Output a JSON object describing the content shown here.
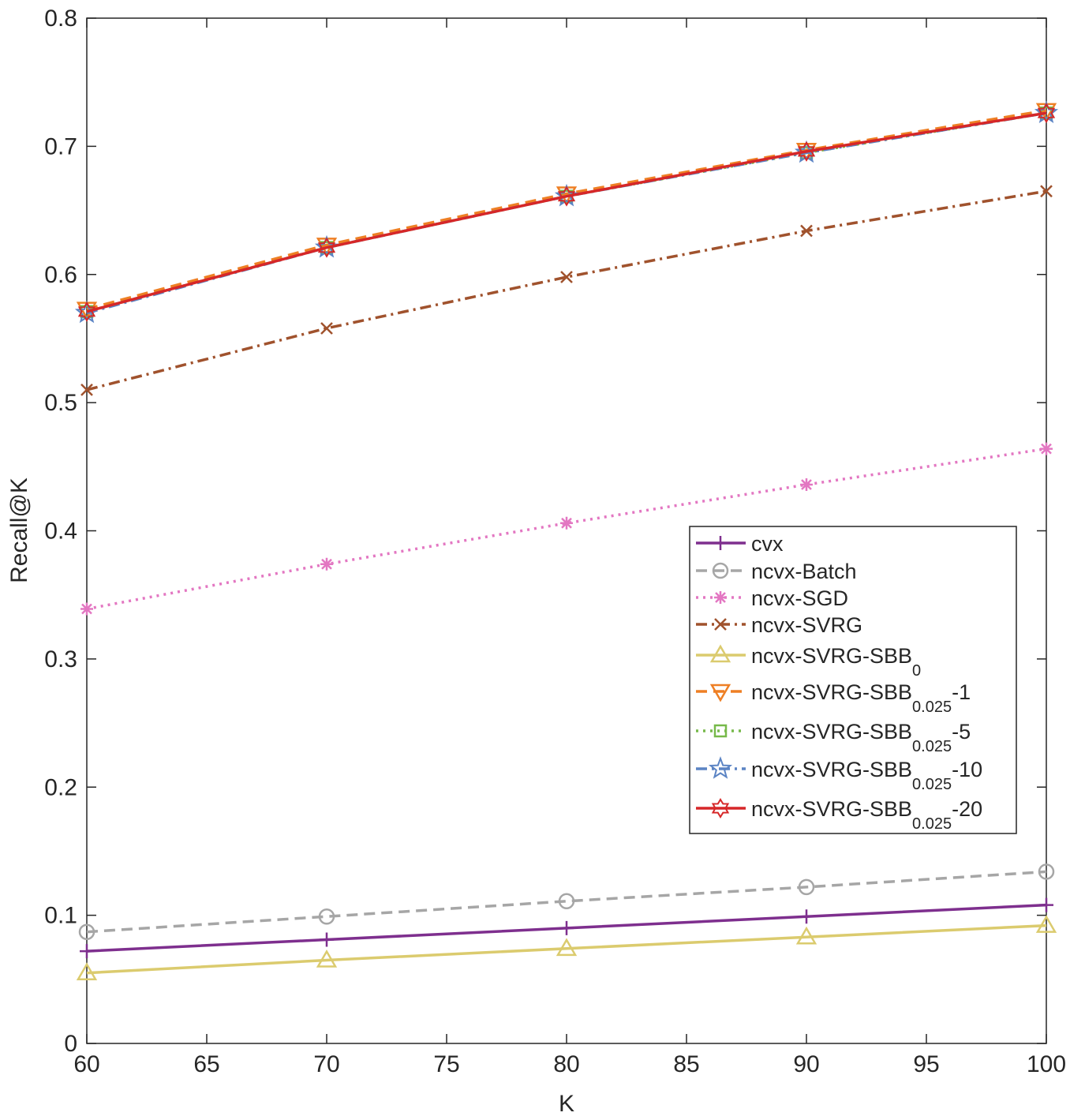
{
  "chart_data": {
    "type": "line",
    "title": "",
    "xlabel": "K",
    "ylabel": "Recall@K",
    "xlim": [
      60,
      100
    ],
    "ylim": [
      0,
      0.8
    ],
    "xticks": [
      60,
      65,
      70,
      75,
      80,
      85,
      90,
      95,
      100
    ],
    "yticks": [
      0,
      0.1,
      0.2,
      0.3,
      0.4,
      0.5,
      0.6,
      0.7,
      0.8
    ],
    "ytick_labels": [
      "0",
      "0.1",
      "0.2",
      "0.3",
      "0.4",
      "0.5",
      "0.6",
      "0.7",
      "0.8"
    ],
    "grid": false,
    "legend_position": "center-right",
    "x": [
      60,
      70,
      80,
      90,
      100
    ],
    "series": [
      {
        "name": "cvx",
        "sub": "",
        "suffix": "",
        "color": "#7E2F8E",
        "dash": "solid",
        "marker": "plus",
        "values": [
          0.072,
          0.081,
          0.09,
          0.099,
          0.108
        ]
      },
      {
        "name": "ncvx-Batch",
        "sub": "",
        "suffix": "",
        "color": "#A6A6A6",
        "dash": "dashed",
        "marker": "circle",
        "values": [
          0.087,
          0.099,
          0.111,
          0.122,
          0.134
        ]
      },
      {
        "name": "ncvx-SGD",
        "sub": "",
        "suffix": "",
        "color": "#E377C2",
        "dash": "dotted",
        "marker": "asterisk",
        "values": [
          0.339,
          0.374,
          0.406,
          0.436,
          0.464
        ]
      },
      {
        "name": "ncvx-SVRG",
        "sub": "",
        "suffix": "",
        "color": "#A0522D",
        "dash": "dashdot",
        "marker": "x",
        "values": [
          0.51,
          0.558,
          0.598,
          0.634,
          0.665
        ]
      },
      {
        "name": "ncvx-SVRG-SBB",
        "sub": "0",
        "suffix": "",
        "color": "#DBCB6E",
        "dash": "solid",
        "marker": "triangle-up",
        "values": [
          0.055,
          0.065,
          0.074,
          0.083,
          0.092
        ]
      },
      {
        "name": "ncvx-SVRG-SBB",
        "sub": "0.025",
        "suffix": "-1",
        "color": "#EE7F24",
        "dash": "dashed",
        "marker": "triangle-down",
        "values": [
          0.573,
          0.623,
          0.663,
          0.697,
          0.728
        ]
      },
      {
        "name": "ncvx-SVRG-SBB",
        "sub": "0.025",
        "suffix": "-5",
        "color": "#77B94A",
        "dash": "dotted",
        "marker": "square",
        "values": [
          0.571,
          0.621,
          0.661,
          0.695,
          0.726
        ]
      },
      {
        "name": "ncvx-SVRG-SBB",
        "sub": "0.025",
        "suffix": "-10",
        "color": "#5B84C4",
        "dash": "dashdot",
        "marker": "pentagram",
        "values": [
          0.57,
          0.621,
          0.661,
          0.695,
          0.726
        ]
      },
      {
        "name": "ncvx-SVRG-SBB",
        "sub": "0.025",
        "suffix": "-20",
        "color": "#D62728",
        "dash": "solid",
        "marker": "hexagram",
        "values": [
          0.571,
          0.621,
          0.661,
          0.696,
          0.726
        ]
      }
    ]
  }
}
